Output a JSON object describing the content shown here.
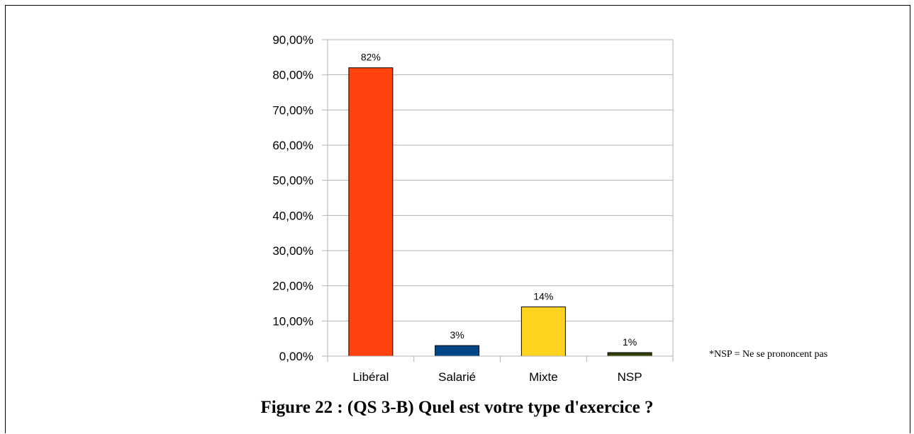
{
  "chart_data": {
    "type": "bar",
    "categories": [
      "Libéral",
      "Salarié",
      "Mixte",
      "NSP"
    ],
    "values": [
      82,
      3,
      14,
      1
    ],
    "data_labels": [
      "82%",
      "3%",
      "14%",
      "1%"
    ],
    "colors": [
      "#ff420e",
      "#004586",
      "#ffd320",
      "#314004"
    ],
    "ylim": [
      0,
      90
    ],
    "yticks": [
      "0,00%",
      "10,00%",
      "20,00%",
      "30,00%",
      "40,00%",
      "50,00%",
      "60,00%",
      "70,00%",
      "80,00%",
      "90,00%"
    ],
    "grid": true,
    "note": "*NSP = Ne se prononcent pas",
    "caption": "Figure 22 : (QS 3-B) Quel est votre type d'exercice ?"
  }
}
